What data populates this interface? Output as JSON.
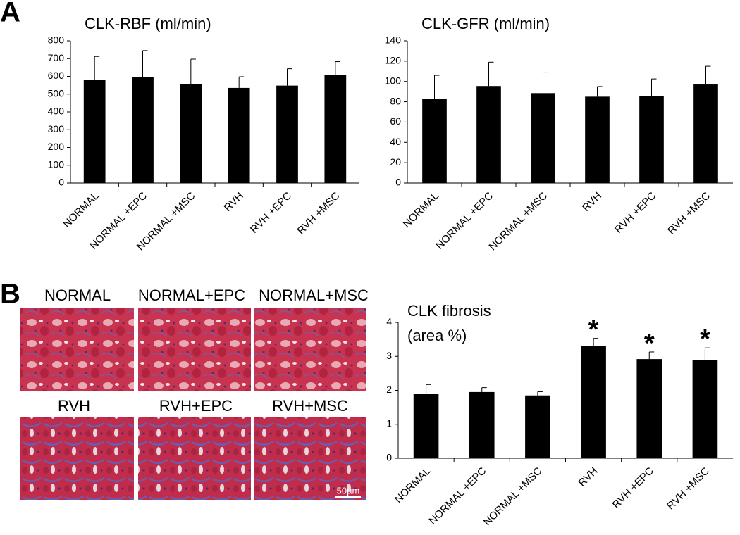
{
  "chart_data": [
    {
      "type": "bar",
      "title": "CLK-RBF (ml/min)",
      "categories": [
        "NORMAL",
        "NORMAL +EPC",
        "NORMAL +MSC",
        "RVH",
        "RVH +EPC",
        "RVH +MSC"
      ],
      "values": [
        580,
        597,
        558,
        535,
        548,
        607
      ],
      "errors": [
        132,
        148,
        139,
        63,
        95,
        76
      ],
      "color": "#000000",
      "ylim": [
        0,
        800
      ],
      "yticks": [
        0,
        100,
        200,
        300,
        400,
        500,
        600,
        700,
        800
      ]
    },
    {
      "type": "bar",
      "title": "CLK-GFR (ml/min)",
      "categories": [
        "NORMAL",
        "NORMAL +EPC",
        "NORMAL +MSC",
        "RVH",
        "RVH +EPC",
        "RVH +MSC"
      ],
      "values": [
        83,
        95.5,
        88.5,
        85,
        85.5,
        97
      ],
      "errors": [
        23,
        23.5,
        20,
        10,
        17,
        18
      ],
      "color": "#000000",
      "ylim": [
        0,
        140
      ],
      "yticks": [
        0,
        20,
        40,
        60,
        80,
        100,
        120,
        140
      ]
    },
    {
      "type": "bar",
      "title": [
        "CLK fibrosis",
        "(area %)"
      ],
      "categories": [
        "NORMAL",
        "NORMAL +EPC",
        "NORMAL +MSC",
        "RVH",
        "RVH +EPC",
        "RVH +MSC"
      ],
      "values": [
        1.9,
        1.95,
        1.85,
        3.3,
        2.92,
        2.9
      ],
      "errors": [
        0.27,
        0.13,
        0.11,
        0.23,
        0.21,
        0.35
      ],
      "significance": [
        null,
        null,
        null,
        "*",
        "*",
        "*"
      ],
      "color": "#000000",
      "ylim": [
        0,
        4
      ],
      "yticks": [
        0,
        1,
        2,
        3,
        4
      ]
    }
  ],
  "panel_labels": [
    "A",
    "B"
  ],
  "images": {
    "labels": [
      "NORMAL",
      "NORMAL+EPC",
      "NORMAL+MSC",
      "RVH",
      "RVH+EPC",
      "RVH+MSC"
    ],
    "scale_bar": "50µm"
  }
}
